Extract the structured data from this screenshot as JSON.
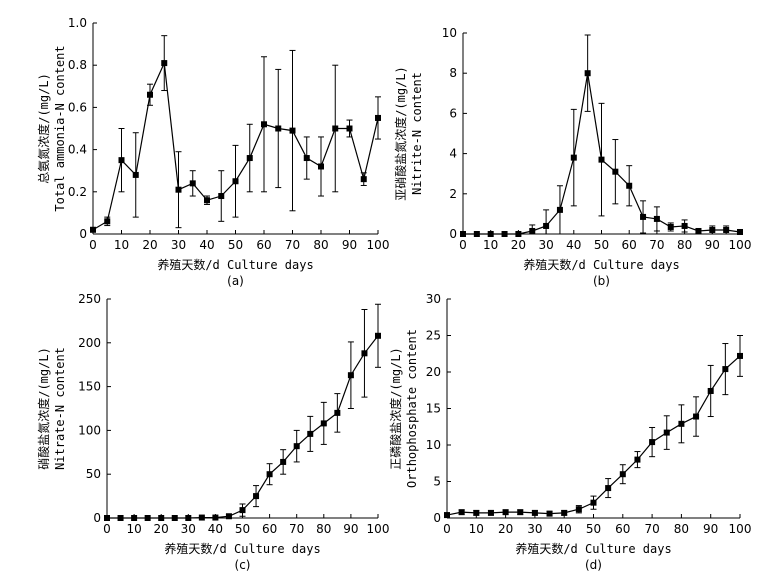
{
  "chart_data": [
    {
      "type": "line",
      "panel_label": "(a)",
      "xlabel": "养殖天数/d Culture days",
      "ylabel_cn": "总氨氮浓度/(mg/L)",
      "ylabel_en": "Total ammonia-N content",
      "xlim": [
        0,
        100
      ],
      "ylim": [
        0,
        1.0
      ],
      "xticks": [
        0,
        10,
        20,
        30,
        40,
        50,
        60,
        70,
        80,
        90,
        100
      ],
      "yticks": [
        "0",
        "0.2",
        "0.4",
        "0.6",
        "0.8",
        "1.0"
      ],
      "x": [
        0,
        5,
        10,
        15,
        20,
        25,
        30,
        35,
        40,
        45,
        50,
        55,
        60,
        65,
        70,
        75,
        80,
        85,
        90,
        95,
        100
      ],
      "values": [
        0.02,
        0.06,
        0.35,
        0.28,
        0.66,
        0.81,
        0.21,
        0.24,
        0.16,
        0.18,
        0.25,
        0.36,
        0.52,
        0.5,
        0.49,
        0.36,
        0.32,
        0.5,
        0.5,
        0.26,
        0.55
      ],
      "errors": [
        0.01,
        0.02,
        0.15,
        0.2,
        0.05,
        0.13,
        0.18,
        0.06,
        0.02,
        0.12,
        0.17,
        0.16,
        0.32,
        0.28,
        0.38,
        0.1,
        0.14,
        0.3,
        0.04,
        0.03,
        0.1
      ]
    },
    {
      "type": "line",
      "panel_label": "(b)",
      "xlabel": "养殖天数/d Culture days",
      "ylabel_cn": "亚硝酸盐氮浓度/(mg/L)",
      "ylabel_en": "Nitrite-N content",
      "xlim": [
        0,
        100
      ],
      "ylim": [
        0,
        10
      ],
      "xticks": [
        0,
        10,
        20,
        30,
        40,
        50,
        60,
        70,
        80,
        90,
        100
      ],
      "yticks": [
        "0",
        "2",
        "4",
        "6",
        "8",
        "10"
      ],
      "x": [
        0,
        5,
        10,
        15,
        20,
        25,
        30,
        35,
        40,
        45,
        50,
        55,
        60,
        65,
        70,
        75,
        80,
        85,
        90,
        95,
        100
      ],
      "values": [
        0.0,
        0.0,
        0.0,
        0.0,
        0.0,
        0.15,
        0.4,
        1.2,
        3.8,
        8.0,
        3.7,
        3.1,
        2.4,
        0.85,
        0.75,
        0.35,
        0.4,
        0.15,
        0.2,
        0.2,
        0.1
      ],
      "errors": [
        0.0,
        0.0,
        0.0,
        0.0,
        0.0,
        0.3,
        0.8,
        1.2,
        2.4,
        1.9,
        2.8,
        1.6,
        1.0,
        0.8,
        0.6,
        0.2,
        0.3,
        0.1,
        0.2,
        0.2,
        0.1
      ]
    },
    {
      "type": "line",
      "panel_label": "(c)",
      "xlabel": "养殖天数/d Culture days",
      "ylabel_cn": "硝酸盐氮浓度/(mg/L)",
      "ylabel_en": "Nitrate-N content",
      "xlim": [
        0,
        100
      ],
      "ylim": [
        0,
        250
      ],
      "xticks": [
        0,
        10,
        20,
        30,
        40,
        50,
        60,
        70,
        80,
        90,
        100
      ],
      "yticks": [
        "0",
        "50",
        "100",
        "150",
        "200",
        "250"
      ],
      "x": [
        0,
        5,
        10,
        15,
        20,
        25,
        30,
        35,
        40,
        45,
        50,
        55,
        60,
        65,
        70,
        75,
        80,
        85,
        90,
        95,
        100
      ],
      "values": [
        0,
        0,
        0,
        0,
        0,
        0,
        0,
        0.5,
        0.5,
        2,
        9,
        25,
        50,
        64,
        82,
        96,
        108,
        120,
        163,
        188,
        208
      ],
      "errors": [
        0,
        0,
        0,
        0,
        0,
        0,
        0,
        0.5,
        0.5,
        2,
        7,
        12,
        12,
        14,
        18,
        20,
        24,
        22,
        38,
        50,
        36
      ]
    },
    {
      "type": "line",
      "panel_label": "(d)",
      "xlabel": "养殖天数/d Culture days",
      "ylabel_cn": "正磷酸盐浓度/(mg/L)",
      "ylabel_en": "Orthophosphate content",
      "xlim": [
        0,
        100
      ],
      "ylim": [
        0,
        30
      ],
      "xticks": [
        0,
        10,
        20,
        30,
        40,
        50,
        60,
        70,
        80,
        90,
        100
      ],
      "yticks": [
        "0",
        "5",
        "10",
        "15",
        "20",
        "25",
        "30"
      ],
      "x": [
        0,
        5,
        10,
        15,
        20,
        25,
        30,
        35,
        40,
        45,
        50,
        55,
        60,
        65,
        70,
        75,
        80,
        85,
        90,
        95,
        100
      ],
      "values": [
        0.4,
        0.8,
        0.7,
        0.7,
        0.8,
        0.8,
        0.7,
        0.6,
        0.7,
        1.2,
        2.1,
        4.1,
        6.0,
        8.0,
        10.4,
        11.7,
        12.9,
        13.9,
        17.4,
        20.4,
        22.2
      ],
      "errors": [
        0.3,
        0.3,
        0.3,
        0.3,
        0.3,
        0.3,
        0.3,
        0.3,
        0.3,
        0.5,
        0.9,
        1.3,
        1.3,
        1.1,
        2.0,
        2.3,
        2.6,
        2.7,
        3.5,
        3.5,
        2.8
      ]
    }
  ]
}
